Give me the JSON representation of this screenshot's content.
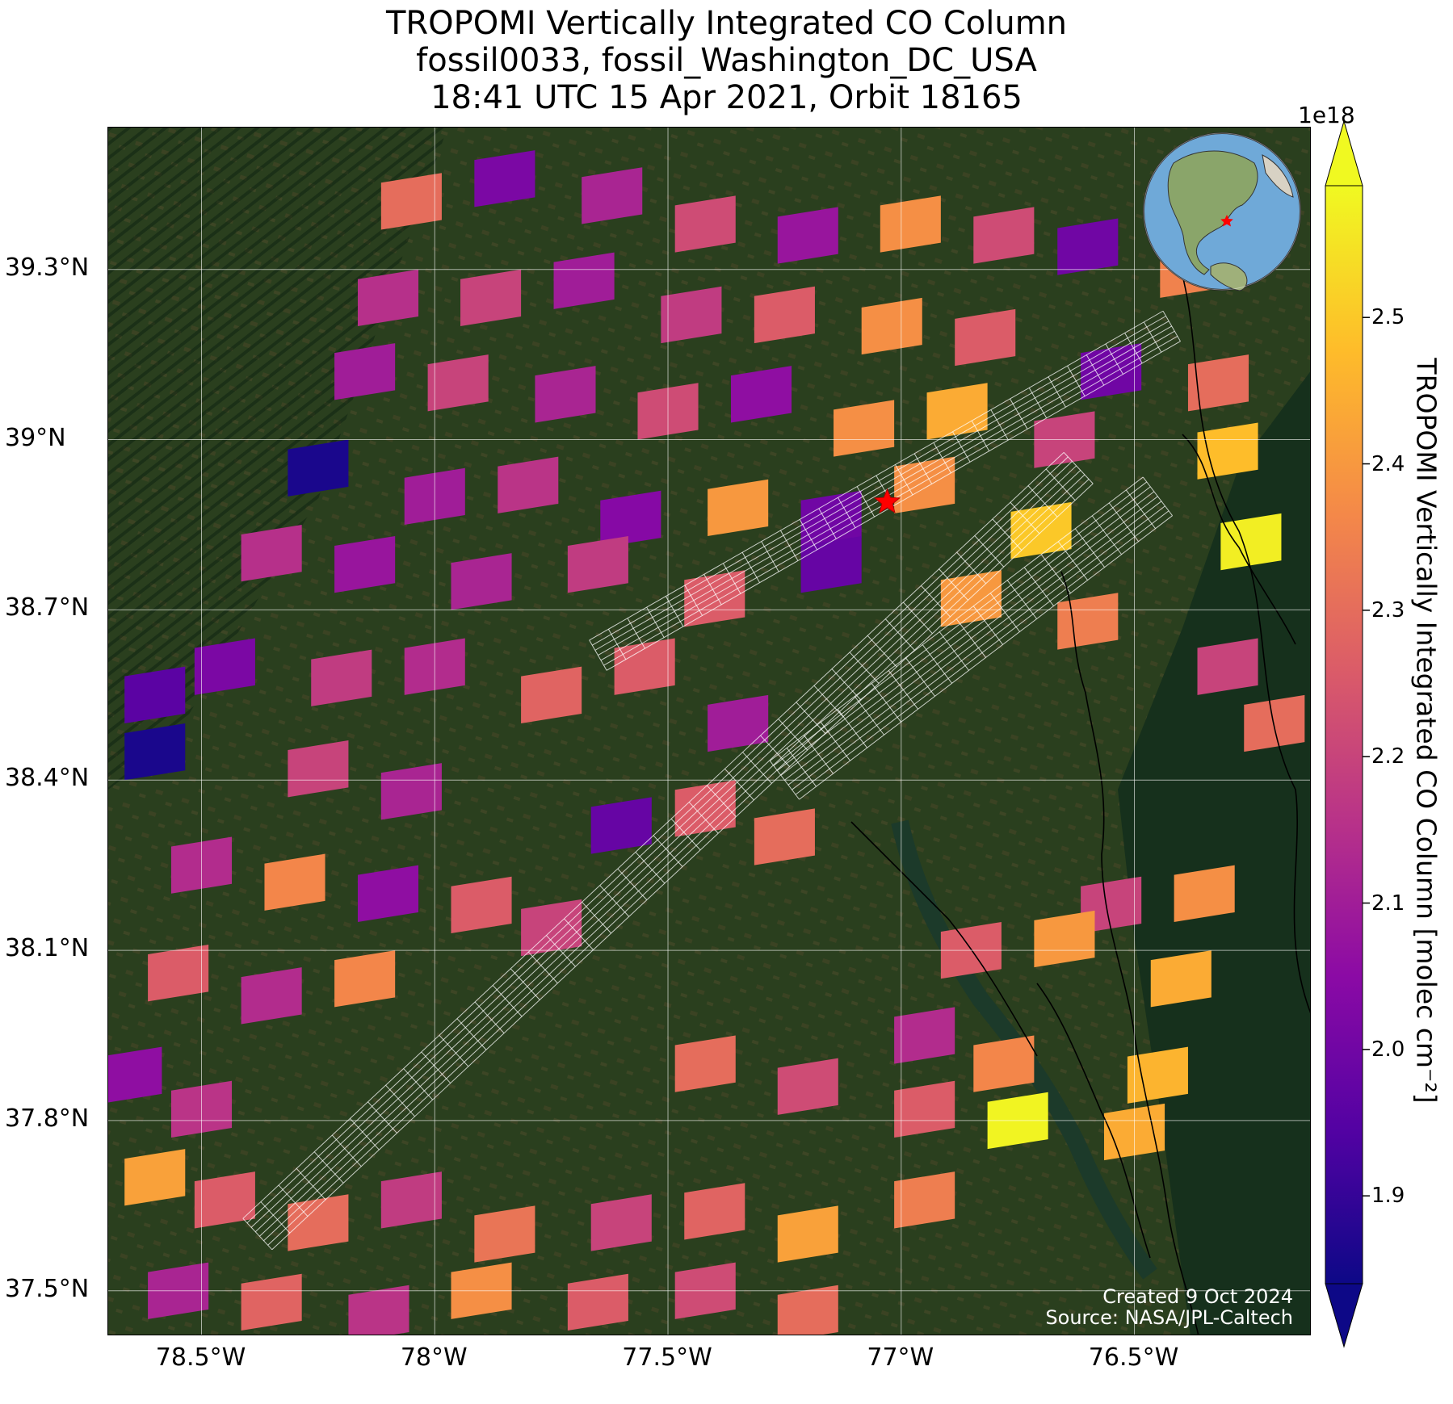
{
  "title": {
    "line1": "TROPOMI Vertically Integrated CO Column",
    "line2": "fossil0033, fossil_Washington_DC_USA",
    "line3": "18:41 UTC 15 Apr 2021, Orbit 18165"
  },
  "map": {
    "lon_range": [
      -78.7,
      -76.12
    ],
    "lat_range": [
      37.42,
      39.55
    ],
    "lat_ticks": [
      "39.3°N",
      "39°N",
      "38.7°N",
      "38.4°N",
      "38.1°N",
      "37.8°N",
      "37.5°N"
    ],
    "lat_tick_values": [
      39.3,
      39.0,
      38.7,
      38.4,
      38.1,
      37.8,
      37.5
    ],
    "lon_ticks": [
      "78.5°W",
      "78°W",
      "77.5°W",
      "77°W",
      "76.5°W"
    ],
    "lon_tick_values": [
      -78.5,
      -78.0,
      -77.5,
      -77.0,
      -76.5
    ],
    "gridlines": true,
    "basemap": "satellite imagery",
    "target_marker": {
      "icon": "red-star-icon",
      "lon": -77.03,
      "lat": 38.89,
      "color": "#ff0000"
    }
  },
  "credits": {
    "created": "Created 9 Oct 2024",
    "source": "Source: NASA/JPL-Caltech"
  },
  "colorbar": {
    "label": "TROPOMI Vertically Integrated CO Column [molec cm⁻²]",
    "exponent": "1e18",
    "ticks": [
      "1.9",
      "2.0",
      "2.1",
      "2.2",
      "2.3",
      "2.4",
      "2.5"
    ],
    "tick_values": [
      1.9,
      2.0,
      2.1,
      2.2,
      2.3,
      2.4,
      2.5
    ],
    "range": [
      1.84,
      2.59
    ],
    "colormap": "plasma",
    "extend": "both"
  },
  "inset": {
    "icon": "globe-icon",
    "marker": "red-star-icon"
  },
  "chart_data": {
    "type": "heatmap",
    "pixels": [
      [
        -78.05,
        39.42,
        2.3
      ],
      [
        -77.85,
        39.46,
        2.02
      ],
      [
        -77.62,
        39.43,
        2.12
      ],
      [
        -77.42,
        39.38,
        2.22
      ],
      [
        -77.2,
        39.36,
        2.08
      ],
      [
        -76.98,
        39.38,
        2.38
      ],
      [
        -76.78,
        39.36,
        2.22
      ],
      [
        -76.6,
        39.34,
        2.0
      ],
      [
        -76.38,
        39.3,
        2.35
      ],
      [
        -78.1,
        39.25,
        2.15
      ],
      [
        -77.88,
        39.25,
        2.2
      ],
      [
        -77.68,
        39.28,
        2.1
      ],
      [
        -77.45,
        39.22,
        2.18
      ],
      [
        -77.25,
        39.22,
        2.26
      ],
      [
        -77.02,
        39.2,
        2.38
      ],
      [
        -76.82,
        39.18,
        2.26
      ],
      [
        -76.55,
        39.12,
        2.0
      ],
      [
        -76.32,
        39.1,
        2.3
      ],
      [
        -78.15,
        39.12,
        2.1
      ],
      [
        -77.95,
        39.1,
        2.2
      ],
      [
        -77.72,
        39.08,
        2.12
      ],
      [
        -77.5,
        39.05,
        2.22
      ],
      [
        -77.3,
        39.08,
        2.06
      ],
      [
        -77.08,
        39.02,
        2.38
      ],
      [
        -76.88,
        39.05,
        2.44
      ],
      [
        -76.65,
        39.0,
        2.2
      ],
      [
        -76.3,
        38.98,
        2.48
      ],
      [
        -78.25,
        38.95,
        1.86
      ],
      [
        -78.0,
        38.9,
        2.1
      ],
      [
        -77.8,
        38.92,
        2.16
      ],
      [
        -77.58,
        38.86,
        2.04
      ],
      [
        -77.35,
        38.88,
        2.4
      ],
      [
        -77.15,
        38.86,
        2.0
      ],
      [
        -76.95,
        38.92,
        2.38
      ],
      [
        -76.7,
        38.84,
        2.5
      ],
      [
        -76.25,
        38.82,
        2.57
      ],
      [
        -78.35,
        38.8,
        2.15
      ],
      [
        -78.15,
        38.78,
        2.08
      ],
      [
        -77.9,
        38.75,
        2.12
      ],
      [
        -77.65,
        38.78,
        2.18
      ],
      [
        -77.4,
        38.72,
        2.26
      ],
      [
        -77.15,
        38.78,
        1.98
      ],
      [
        -76.85,
        38.72,
        2.4
      ],
      [
        -76.6,
        38.68,
        2.34
      ],
      [
        -76.3,
        38.6,
        2.2
      ],
      [
        -78.6,
        38.55,
        1.96
      ],
      [
        -78.45,
        38.6,
        2.02
      ],
      [
        -78.2,
        38.58,
        2.18
      ],
      [
        -78.0,
        38.6,
        2.14
      ],
      [
        -77.75,
        38.55,
        2.28
      ],
      [
        -77.55,
        38.6,
        2.26
      ],
      [
        -77.35,
        38.5,
        2.1
      ],
      [
        -76.2,
        38.5,
        2.3
      ],
      [
        -78.6,
        38.45,
        1.86
      ],
      [
        -78.25,
        38.42,
        2.2
      ],
      [
        -78.05,
        38.38,
        2.12
      ],
      [
        -77.6,
        38.32,
        1.98
      ],
      [
        -77.42,
        38.35,
        2.26
      ],
      [
        -77.25,
        38.3,
        2.3
      ],
      [
        -76.55,
        38.18,
        2.2
      ],
      [
        -76.35,
        38.2,
        2.38
      ],
      [
        -78.5,
        38.25,
        2.14
      ],
      [
        -78.3,
        38.22,
        2.36
      ],
      [
        -78.1,
        38.2,
        2.06
      ],
      [
        -77.9,
        38.18,
        2.26
      ],
      [
        -77.75,
        38.14,
        2.2
      ],
      [
        -76.85,
        38.1,
        2.26
      ],
      [
        -76.65,
        38.12,
        2.4
      ],
      [
        -76.4,
        38.05,
        2.44
      ],
      [
        -78.55,
        38.06,
        2.26
      ],
      [
        -78.35,
        38.02,
        2.14
      ],
      [
        -78.15,
        38.05,
        2.36
      ],
      [
        -76.95,
        37.95,
        2.14
      ],
      [
        -76.78,
        37.9,
        2.36
      ],
      [
        -76.45,
        37.88,
        2.46
      ],
      [
        -78.65,
        37.88,
        2.06
      ],
      [
        -78.5,
        37.82,
        2.16
      ],
      [
        -77.42,
        37.9,
        2.3
      ],
      [
        -77.2,
        37.86,
        2.22
      ],
      [
        -76.95,
        37.82,
        2.26
      ],
      [
        -76.75,
        37.8,
        2.58
      ],
      [
        -76.5,
        37.78,
        2.44
      ],
      [
        -78.6,
        37.7,
        2.42
      ],
      [
        -78.45,
        37.66,
        2.26
      ],
      [
        -78.25,
        37.62,
        2.3
      ],
      [
        -78.05,
        37.66,
        2.18
      ],
      [
        -77.85,
        37.6,
        2.32
      ],
      [
        -77.6,
        37.62,
        2.2
      ],
      [
        -77.4,
        37.64,
        2.28
      ],
      [
        -77.2,
        37.6,
        2.42
      ],
      [
        -76.95,
        37.66,
        2.34
      ],
      [
        -78.55,
        37.5,
        2.12
      ],
      [
        -78.35,
        37.48,
        2.28
      ],
      [
        -78.12,
        37.46,
        2.16
      ],
      [
        -77.9,
        37.5,
        2.38
      ],
      [
        -77.65,
        37.48,
        2.26
      ],
      [
        -77.42,
        37.5,
        2.22
      ],
      [
        -77.2,
        37.46,
        2.3
      ]
    ]
  }
}
